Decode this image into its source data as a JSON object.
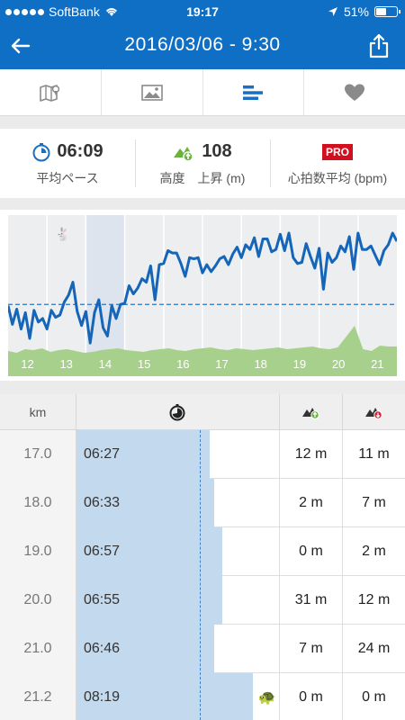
{
  "status_bar": {
    "carrier": "SoftBank",
    "time": "19:17",
    "battery": "51%"
  },
  "header": {
    "title": "2016/03/06 - 9:30"
  },
  "tabs": [
    {
      "name": "map",
      "icon": "map-icon",
      "active": false
    },
    {
      "name": "photo",
      "icon": "photo-icon",
      "active": false
    },
    {
      "name": "splits",
      "icon": "bars-icon",
      "active": true
    },
    {
      "name": "heart",
      "icon": "heart-icon",
      "active": false
    }
  ],
  "stats": {
    "pace": {
      "value": "06:09",
      "label": "平均ペース"
    },
    "elevation": {
      "value": "108",
      "label": "高度　上昇 (m)"
    },
    "heart_rate": {
      "badge": "PRO",
      "label": "心拍数平均 (bpm)"
    }
  },
  "chart_data": {
    "type": "line",
    "x_labels": [
      "12",
      "13",
      "14",
      "15",
      "16",
      "17",
      "18",
      "19",
      "20",
      "21"
    ],
    "highlighted_km": "14",
    "pace_series": [
      0.38,
      0.22,
      0.35,
      0.18,
      0.32,
      0.1,
      0.34,
      0.24,
      0.27,
      0.18,
      0.34,
      0.28,
      0.3,
      0.41,
      0.47,
      0.58,
      0.33,
      0.21,
      0.33,
      0.06,
      0.32,
      0.43,
      0.19,
      0.12,
      0.38,
      0.27,
      0.39,
      0.4,
      0.55,
      0.48,
      0.53,
      0.61,
      0.58,
      0.72,
      0.43,
      0.73,
      0.74,
      0.85,
      0.83,
      0.83,
      0.74,
      0.63,
      0.79,
      0.78,
      0.79,
      0.66,
      0.73,
      0.67,
      0.72,
      0.78,
      0.8,
      0.73,
      0.82,
      0.88,
      0.79,
      0.9,
      0.86,
      0.96,
      0.8,
      0.95,
      0.95,
      0.84,
      0.86,
      0.99,
      0.85,
      1.0,
      0.79,
      0.74,
      0.75,
      0.91,
      0.8,
      0.7,
      0.87,
      0.52,
      0.83,
      0.75,
      0.79,
      0.89,
      0.84,
      0.97,
      0.69,
      1.0,
      0.86,
      0.86,
      0.89,
      0.81,
      0.73,
      0.85,
      0.9,
      1.0,
      0.93
    ],
    "average_pace": 0.39,
    "elevation_area": "green",
    "colors": {
      "line": "#1565b8",
      "average": "#3a82c9",
      "area": "#a8d08d",
      "highlight": "#dde4ee"
    }
  },
  "table": {
    "headers": {
      "km": "km",
      "pace_icon": "stopwatch-icon",
      "ascent_icon": "ascent-icon",
      "descent_icon": "descent-icon"
    },
    "rows": [
      {
        "km": "17.0",
        "pace": "06:27",
        "up": "12 m",
        "down": "11 m",
        "pace_fraction": 0.66
      },
      {
        "km": "18.0",
        "pace": "06:33",
        "up": "2 m",
        "down": "7 m",
        "pace_fraction": 0.68
      },
      {
        "km": "19.0",
        "pace": "06:57",
        "up": "0 m",
        "down": "2 m",
        "pace_fraction": 0.72
      },
      {
        "km": "20.0",
        "pace": "06:55",
        "up": "31 m",
        "down": "12 m",
        "pace_fraction": 0.72
      },
      {
        "km": "21.0",
        "pace": "06:46",
        "up": "7 m",
        "down": "24 m",
        "pace_fraction": 0.68
      },
      {
        "km": "21.2",
        "pace": "08:19",
        "up": "0 m",
        "down": "0 m",
        "pace_fraction": 0.87,
        "slowest": true
      }
    ]
  }
}
